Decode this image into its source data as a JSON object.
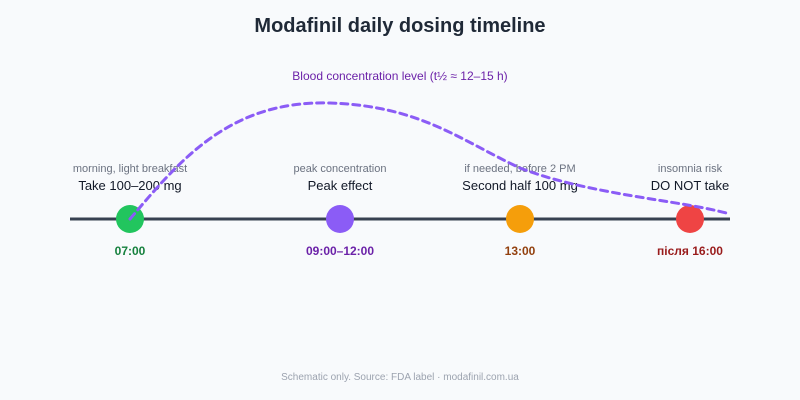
{
  "title": "Modafinil daily dosing timeline",
  "curve_label": "Blood concentration level (t½ ≈ 12–15 h)",
  "colors": {
    "axis": "#374151",
    "curve": "#8b5cf6"
  },
  "events": [
    {
      "note": "morning, light breakfast",
      "action": "Take 100–200 mg",
      "time": "07:00",
      "color": "#22c55e",
      "time_color": "#15803d"
    },
    {
      "note": "peak concentration",
      "action": "Peak effect",
      "time": "09:00–12:00",
      "color": "#8b5cf6",
      "time_color": "#6b21a8"
    },
    {
      "note": "if needed, before 2 PM",
      "action": "Second half 100 mg",
      "time": "13:00",
      "color": "#f59e0b",
      "time_color": "#92400e"
    },
    {
      "note": "insomnia risk",
      "action": "DO NOT take",
      "time": "після 16:00",
      "color": "#ef4444",
      "time_color": "#991b1b"
    }
  ],
  "footer": "Schematic only. Source: FDA label · modafinil.com.ua"
}
